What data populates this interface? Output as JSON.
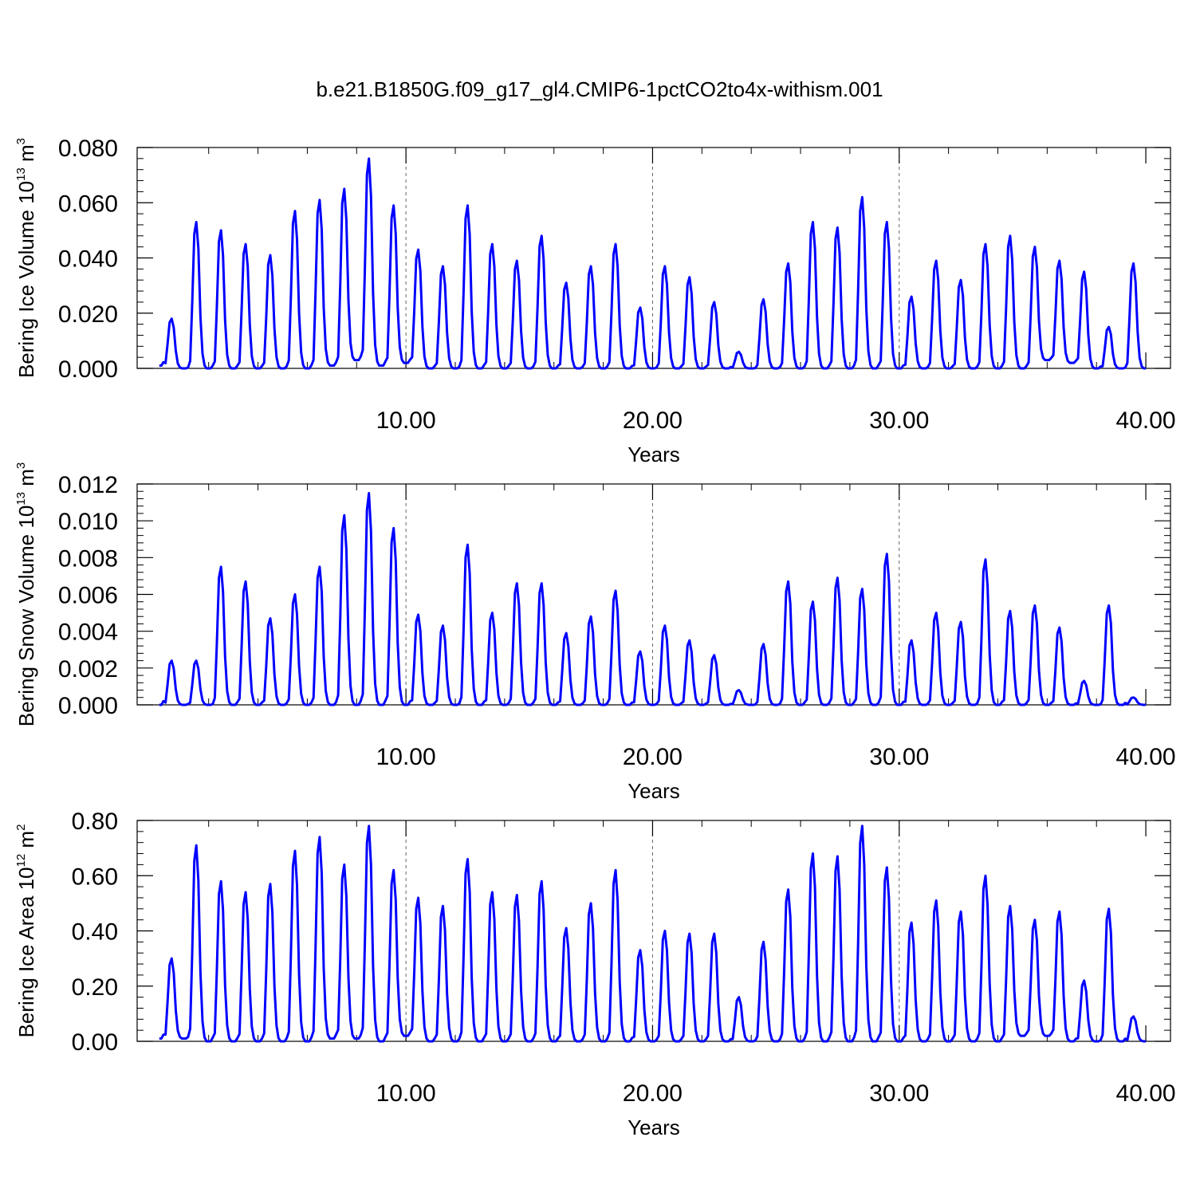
{
  "title": "b.e21.B1850G.f09_g17_gl4.CMIP6-1pctCO2to4x-withism.001",
  "chart_data": [
    {
      "type": "line",
      "xlabel": "Years",
      "ylabel": "Bering Ice Volume 10",
      "ylabel_exp": "13",
      "ylabel_unit": " m",
      "ylabel_unit_exp": "3",
      "xlim": [
        -0.9,
        41
      ],
      "ylim": [
        0,
        0.08
      ],
      "x_ticks": [
        10,
        20,
        30,
        40
      ],
      "x_tick_labels": [
        "10.00",
        "20.00",
        "30.00",
        "40.00"
      ],
      "y_ticks": [
        0,
        0.02,
        0.04,
        0.06,
        0.08
      ],
      "y_tick_labels": [
        "0.000",
        "0.020",
        "0.040",
        "0.060",
        "0.080"
      ],
      "dashed_vlines": [
        10,
        20,
        30
      ],
      "color": "#0000ff",
      "peaks": [
        0.064,
        0.018,
        0.053,
        0.05,
        0.045,
        0.041,
        0.057,
        0.061,
        0.065,
        0.076,
        0.059,
        0.043,
        0.037,
        0.059,
        0.045,
        0.039,
        0.048,
        0.031,
        0.037,
        0.045,
        0.022,
        0.037,
        0.033,
        0.024,
        0.006,
        0.025,
        0.038,
        0.053,
        0.051,
        0.062,
        0.053,
        0.026,
        0.039,
        0.032,
        0.045,
        0.048,
        0.044,
        0.039,
        0.035,
        0.015,
        0.038,
        0.002
      ],
      "troughs": [
        0.001,
        0.0,
        0.0,
        0.0,
        0.0,
        0.0,
        0.0,
        0.001,
        0.003,
        0.001,
        0.002,
        0.0,
        0.0,
        0.0,
        0.0,
        0.0,
        0.0,
        0.0,
        0.0,
        0.0,
        0.0,
        0.0,
        0.0,
        0.0,
        0.0,
        0.0,
        0.0,
        0.0,
        0.0,
        0.0,
        0.0,
        0.0,
        0.0,
        0.0,
        0.0,
        0.0,
        0.003,
        0.002,
        0.0,
        0.0,
        0.0
      ]
    },
    {
      "type": "line",
      "xlabel": "Years",
      "ylabel": "Bering Snow Volume 10",
      "ylabel_exp": "13",
      "ylabel_unit": " m",
      "ylabel_unit_exp": "3",
      "xlim": [
        -0.9,
        41
      ],
      "ylim": [
        0,
        0.012
      ],
      "x_ticks": [
        10,
        20,
        30,
        40
      ],
      "x_tick_labels": [
        "10.00",
        "20.00",
        "30.00",
        "40.00"
      ],
      "y_ticks": [
        0,
        0.002,
        0.004,
        0.006,
        0.008,
        0.01,
        0.012
      ],
      "y_tick_labels": [
        "0.000",
        "0.002",
        "0.004",
        "0.006",
        "0.008",
        "0.010",
        "0.012"
      ],
      "dashed_vlines": [
        10,
        20,
        30
      ],
      "color": "#0000ff",
      "peaks": [
        0.0101,
        0.0024,
        0.0024,
        0.0075,
        0.0067,
        0.0047,
        0.006,
        0.0075,
        0.0103,
        0.0115,
        0.0096,
        0.0049,
        0.0043,
        0.0087,
        0.005,
        0.0066,
        0.0066,
        0.0039,
        0.0048,
        0.0062,
        0.0029,
        0.0043,
        0.0035,
        0.0027,
        0.0008,
        0.0033,
        0.0067,
        0.0056,
        0.0069,
        0.0063,
        0.0082,
        0.0035,
        0.005,
        0.0045,
        0.0079,
        0.0051,
        0.0054,
        0.0042,
        0.0013,
        0.0054,
        0.0004
      ],
      "troughs": [
        0,
        0,
        0,
        0,
        0,
        0,
        0,
        0,
        0,
        0,
        0,
        0,
        0,
        0,
        0,
        0,
        0,
        0,
        0,
        0,
        0,
        0,
        0,
        0,
        0,
        0,
        0,
        0,
        0,
        0,
        0,
        0,
        0,
        0,
        0,
        0,
        0,
        0,
        0,
        0
      ]
    },
    {
      "type": "line",
      "xlabel": "Years",
      "ylabel": "Bering Ice Area 10",
      "ylabel_exp": "12",
      "ylabel_unit": " m",
      "ylabel_unit_exp": "2",
      "xlim": [
        -0.9,
        41
      ],
      "ylim": [
        0,
        0.8
      ],
      "x_ticks": [
        10,
        20,
        30,
        40
      ],
      "x_tick_labels": [
        "10.00",
        "20.00",
        "30.00",
        "40.00"
      ],
      "y_ticks": [
        0,
        0.2,
        0.4,
        0.6,
        0.8
      ],
      "y_tick_labels": [
        "0.00",
        "0.20",
        "0.40",
        "0.60",
        "0.80"
      ],
      "dashed_vlines": [
        10,
        20,
        30
      ],
      "color": "#0000ff",
      "peaks": [
        0.72,
        0.3,
        0.71,
        0.58,
        0.54,
        0.57,
        0.69,
        0.74,
        0.64,
        0.78,
        0.62,
        0.52,
        0.49,
        0.66,
        0.54,
        0.53,
        0.58,
        0.41,
        0.5,
        0.62,
        0.33,
        0.4,
        0.39,
        0.39,
        0.16,
        0.36,
        0.55,
        0.68,
        0.67,
        0.78,
        0.63,
        0.43,
        0.51,
        0.47,
        0.6,
        0.49,
        0.44,
        0.47,
        0.22,
        0.48,
        0.09
      ],
      "troughs": [
        0.01,
        0.01,
        0.0,
        0.0,
        0.0,
        0.0,
        0.0,
        0.01,
        0.01,
        0.0,
        0.02,
        0.0,
        0.0,
        0.0,
        0.0,
        0.0,
        0.0,
        0.0,
        0.0,
        0.0,
        0.0,
        0.0,
        0.0,
        0.0,
        0.0,
        0.0,
        0.0,
        0.0,
        0.0,
        0.0,
        0.0,
        0.0,
        0.0,
        0.0,
        0.0,
        0.02,
        0.02,
        0.0,
        0.0,
        0.0
      ]
    }
  ]
}
